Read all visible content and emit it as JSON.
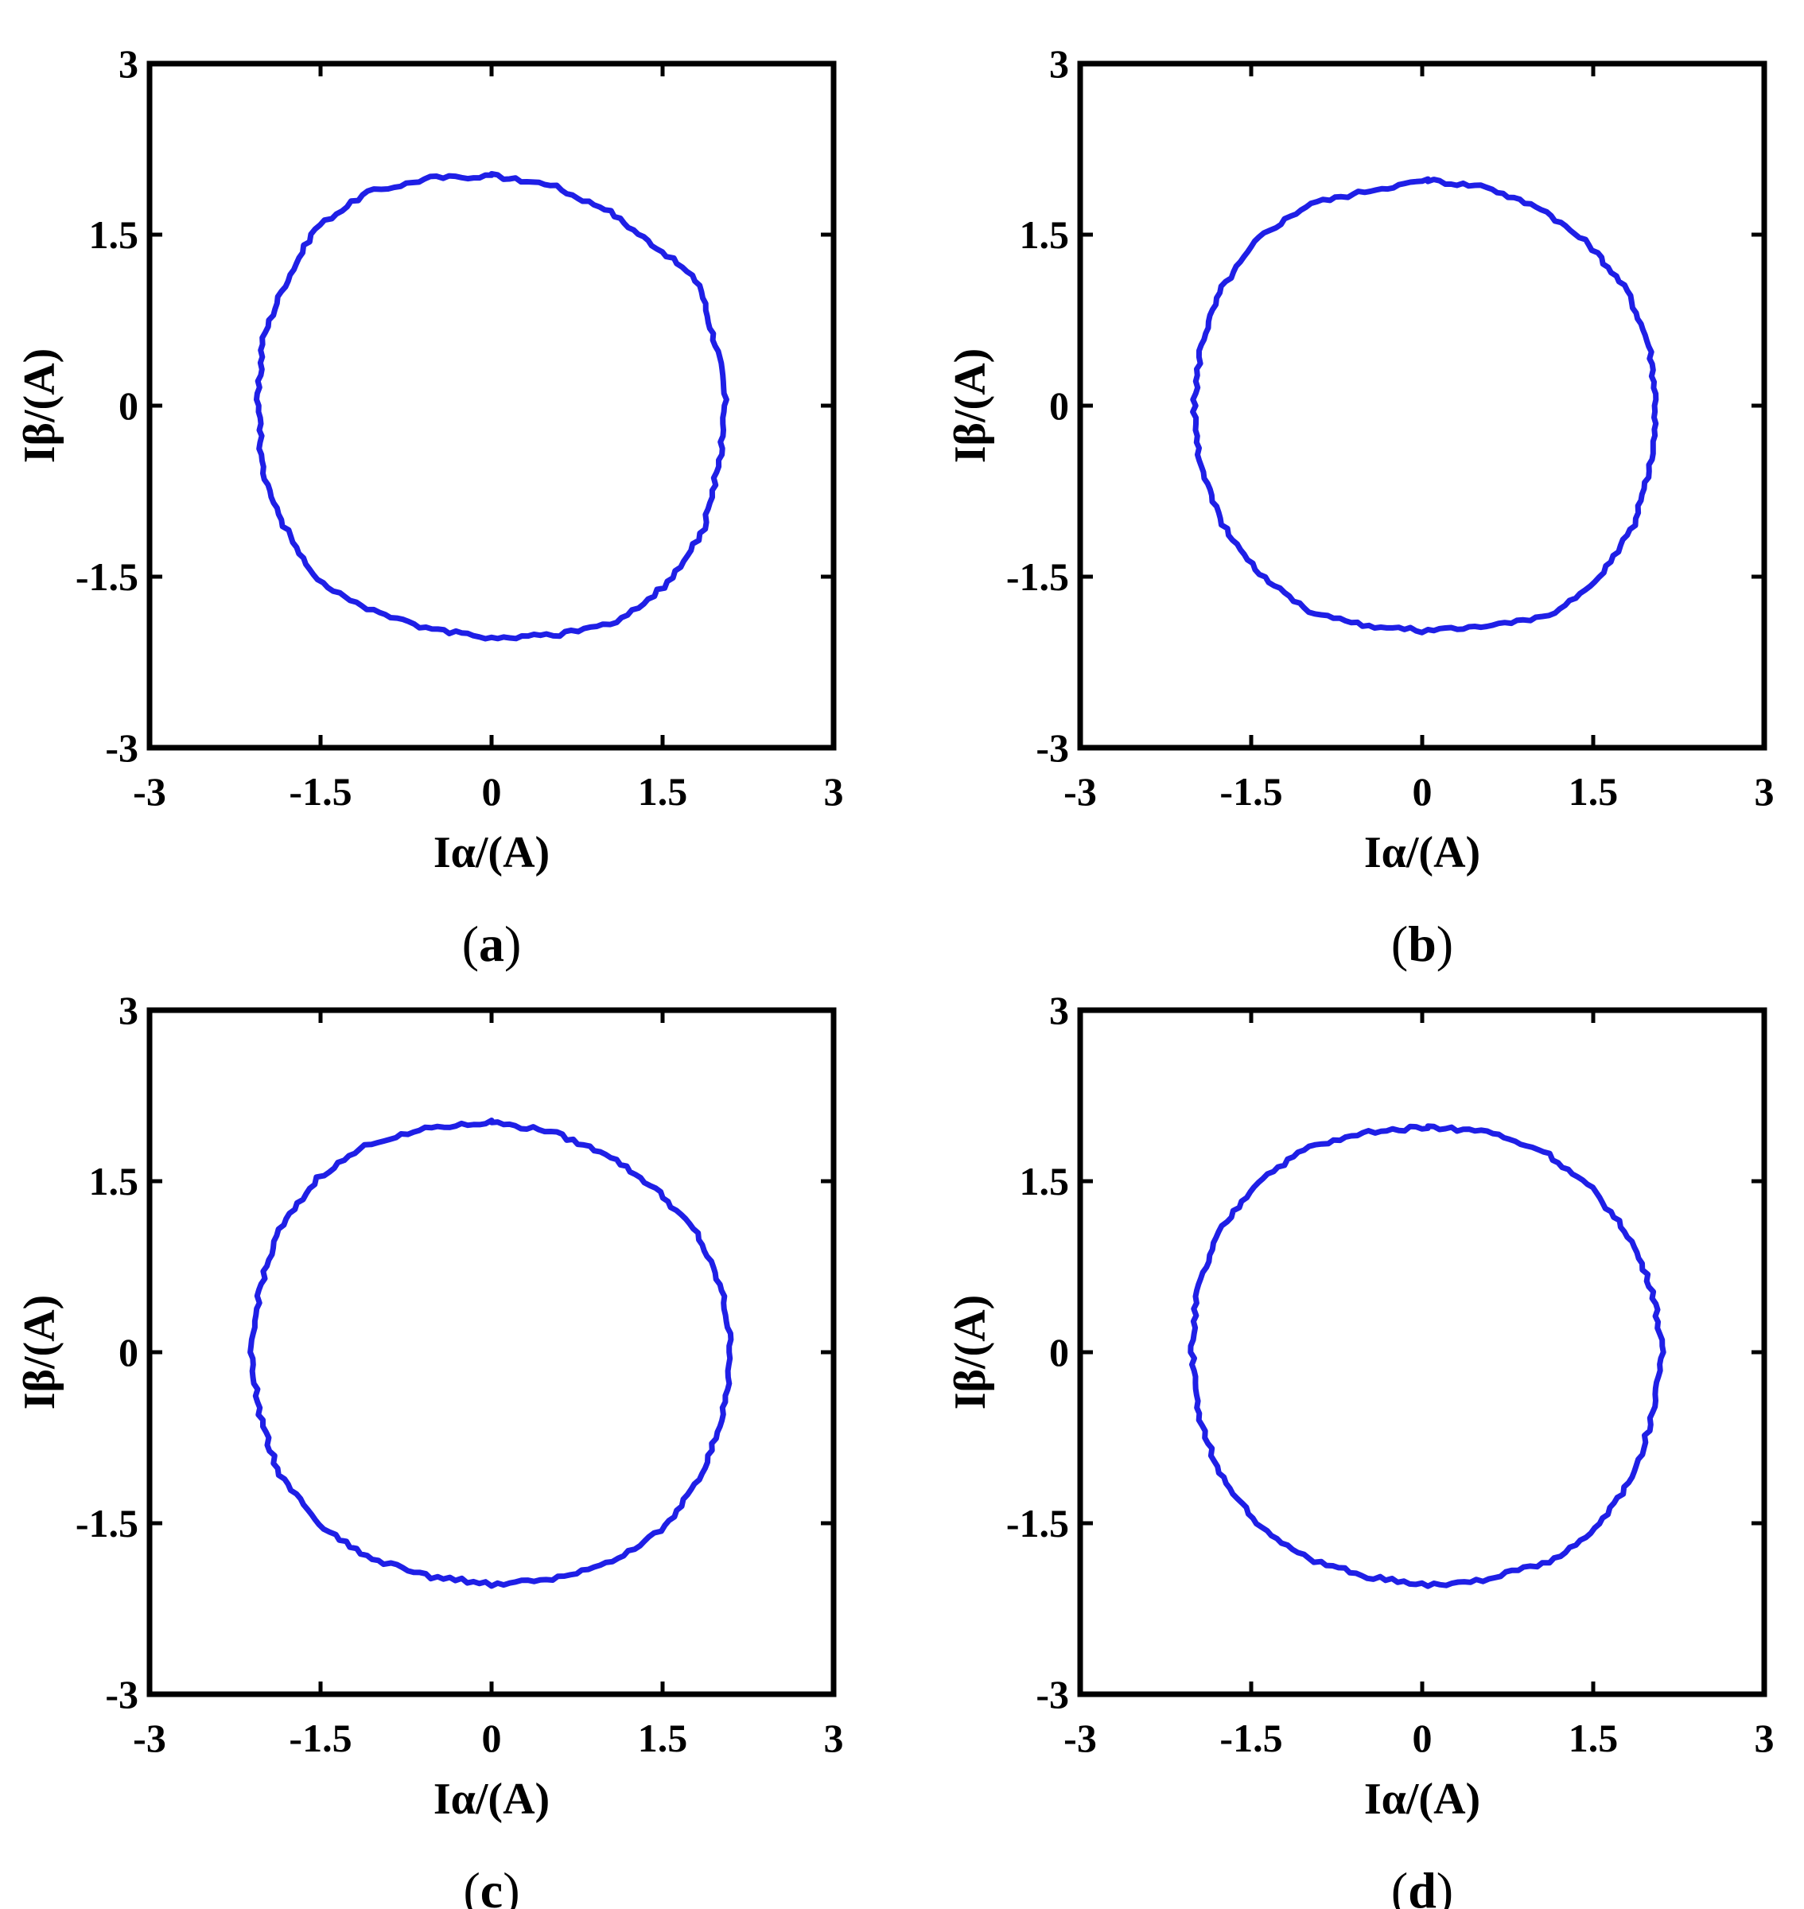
{
  "figure": {
    "curve_color": "#1f1fe6"
  },
  "chart_data": [
    {
      "panel": "a",
      "panel_label": "(a)",
      "type": "line",
      "xlabel": "Iα/(A)",
      "ylabel": "Iβ/(A)",
      "xlim": [
        -3,
        3
      ],
      "ylim": [
        -3,
        3
      ],
      "xticks": [
        "-3",
        "-1.5",
        "0",
        "1.5",
        "3"
      ],
      "yticks": [
        "-3",
        "-1.5",
        "0",
        "1.5",
        "3"
      ],
      "grid": false,
      "series": [
        {
          "shape": "circle",
          "center": [
            0,
            0
          ],
          "radius": 2.0,
          "x": [
            0.0,
            0.6,
            1.2,
            1.6,
            1.85,
            2.0,
            2.05,
            2.0,
            1.85,
            1.6,
            1.2,
            0.6,
            0.0,
            -0.6,
            -1.2,
            -1.6,
            -1.85,
            -2.0,
            -2.05,
            -2.0,
            -1.85,
            -1.6,
            -1.2,
            -0.6,
            0.0
          ],
          "y": [
            2.02,
            1.92,
            1.6,
            1.2,
            1.02,
            0.4,
            0.0,
            -0.5,
            -1.1,
            -1.5,
            -1.85,
            -2.0,
            -2.04,
            -1.95,
            -1.7,
            -1.45,
            -1.0,
            -0.6,
            0.0,
            0.6,
            1.0,
            1.5,
            1.8,
            1.98,
            2.02
          ]
        }
      ]
    },
    {
      "panel": "b",
      "panel_label": "(b)",
      "type": "line",
      "xlabel": "Iα/(A)",
      "ylabel": "Iβ/(A)",
      "xlim": [
        -3,
        3
      ],
      "ylim": [
        -3,
        3
      ],
      "xticks": [
        "-3",
        "-1.5",
        "0",
        "1.5",
        "3"
      ],
      "yticks": [
        "-3",
        "-1.5",
        "0",
        "1.5",
        "3"
      ],
      "grid": false,
      "series": [
        {
          "shape": "circle",
          "center": [
            0.05,
            0.0
          ],
          "radius": 2.0,
          "x": [
            0.05,
            0.65,
            1.25,
            1.65,
            1.9,
            2.02,
            2.05,
            2.02,
            1.88,
            1.62,
            1.22,
            0.62,
            0.05,
            -0.55,
            -1.15,
            -1.55,
            -1.8,
            -1.95,
            -2.0,
            -1.95,
            -1.8,
            -1.5,
            -1.1,
            -0.5,
            0.05
          ],
          "y": [
            1.98,
            1.9,
            1.6,
            1.2,
            0.8,
            0.4,
            0.0,
            -0.45,
            -1.0,
            -1.45,
            -1.78,
            -1.92,
            -1.98,
            -1.92,
            -1.7,
            -1.35,
            -0.95,
            -0.5,
            0.0,
            0.5,
            0.95,
            1.4,
            1.7,
            1.88,
            1.98
          ]
        }
      ]
    },
    {
      "panel": "c",
      "panel_label": "(c)",
      "type": "line",
      "xlabel": "Iα/(A)",
      "ylabel": "Iβ/(A)",
      "xlim": [
        -3,
        3
      ],
      "ylim": [
        -3,
        3
      ],
      "xticks": [
        "-3",
        "-1.5",
        "0",
        "1.5",
        "3"
      ],
      "yticks": [
        "-3",
        "-1.5",
        "0",
        "1.5",
        "3"
      ],
      "grid": false,
      "series": [
        {
          "shape": "circle",
          "center": [
            0,
            0
          ],
          "radius": 2.02,
          "x": [
            0.0,
            0.6,
            1.2,
            1.6,
            1.9,
            2.05,
            2.1,
            2.05,
            1.9,
            1.6,
            1.2,
            0.6,
            0.0,
            -0.6,
            -1.2,
            -1.6,
            -1.9,
            -2.05,
            -2.1,
            -2.05,
            -1.9,
            -1.6,
            -1.2,
            -0.6,
            0.0
          ],
          "y": [
            2.02,
            1.92,
            1.62,
            1.25,
            0.85,
            0.4,
            0.0,
            -0.45,
            -1.0,
            -1.45,
            -1.75,
            -1.98,
            -2.04,
            -1.95,
            -1.72,
            -1.42,
            -1.0,
            -0.5,
            0.0,
            0.5,
            1.0,
            1.45,
            1.75,
            1.95,
            2.02
          ]
        }
      ]
    },
    {
      "panel": "d",
      "panel_label": "(d)",
      "type": "line",
      "xlabel": "Iα/(A)",
      "ylabel": "Iβ/(A)",
      "xlim": [
        -3,
        3
      ],
      "ylim": [
        -3,
        3
      ],
      "xticks": [
        "-3",
        "-1.5",
        "0",
        "1.5",
        "3"
      ],
      "yticks": [
        "-3",
        "-1.5",
        "0",
        "1.5",
        "3"
      ],
      "grid": false,
      "series": [
        {
          "shape": "circle",
          "center": [
            0.05,
            0.0
          ],
          "radius": 2.03,
          "x": [
            0.05,
            0.65,
            1.25,
            1.65,
            1.9,
            2.05,
            2.1,
            2.05,
            1.9,
            1.62,
            1.22,
            0.62,
            0.05,
            -0.55,
            -1.15,
            -1.55,
            -1.82,
            -1.98,
            -2.02,
            -1.98,
            -1.82,
            -1.52,
            -1.12,
            -0.52,
            0.05
          ],
          "y": [
            1.98,
            1.92,
            1.65,
            1.25,
            0.85,
            0.42,
            0.0,
            -0.45,
            -1.0,
            -1.45,
            -1.78,
            -1.98,
            -2.05,
            -1.95,
            -1.72,
            -1.4,
            -0.98,
            -0.5,
            0.0,
            0.5,
            0.98,
            1.42,
            1.72,
            1.92,
            1.98
          ]
        }
      ]
    }
  ]
}
